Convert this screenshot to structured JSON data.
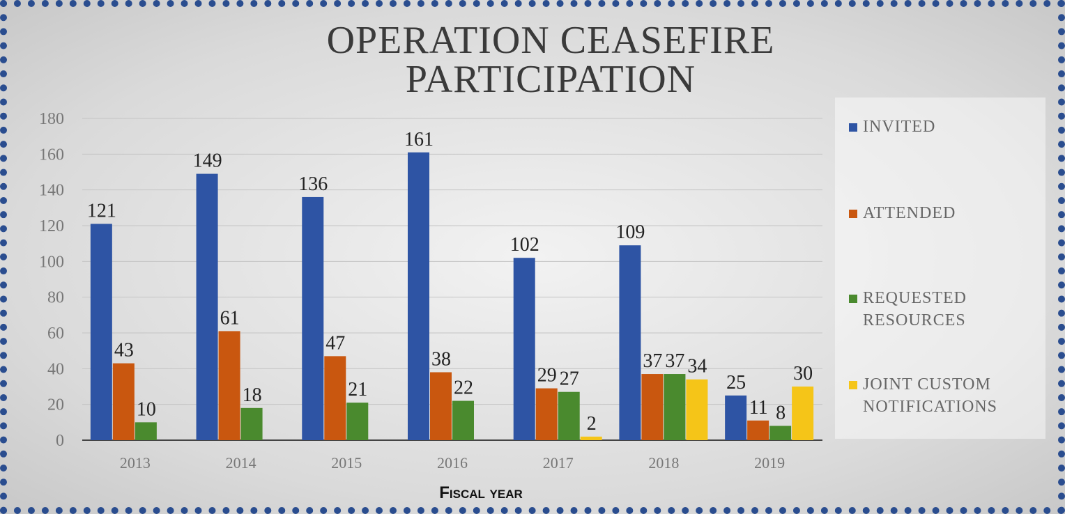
{
  "chart_data": {
    "type": "bar",
    "title": "OPERATION CEASEFIRE PARTICIPATION",
    "x_label": "Fiscal year",
    "categories": [
      "2013",
      "2014",
      "2015",
      "2016",
      "2017",
      "2018",
      "2019"
    ],
    "series": [
      {
        "name": "INVITED",
        "color": "#2e54a4",
        "values": [
          121,
          149,
          136,
          161,
          102,
          109,
          25
        ]
      },
      {
        "name": "ATTENDED",
        "color": "#c9570f",
        "values": [
          43,
          61,
          47,
          38,
          29,
          37,
          11
        ]
      },
      {
        "name": "REQUESTED RESOURCES",
        "color": "#4a8a2e",
        "values": [
          10,
          18,
          21,
          22,
          27,
          37,
          8
        ]
      },
      {
        "name": "JOINT CUSTOM NOTIFICATIONS",
        "color": "#f5c518",
        "values": [
          null,
          null,
          null,
          null,
          2,
          34,
          30
        ]
      }
    ],
    "ylim": [
      0,
      180
    ],
    "yticks": [
      0,
      20,
      40,
      60,
      80,
      100,
      120,
      140,
      160,
      180
    ],
    "grid": true,
    "legend": "right"
  }
}
